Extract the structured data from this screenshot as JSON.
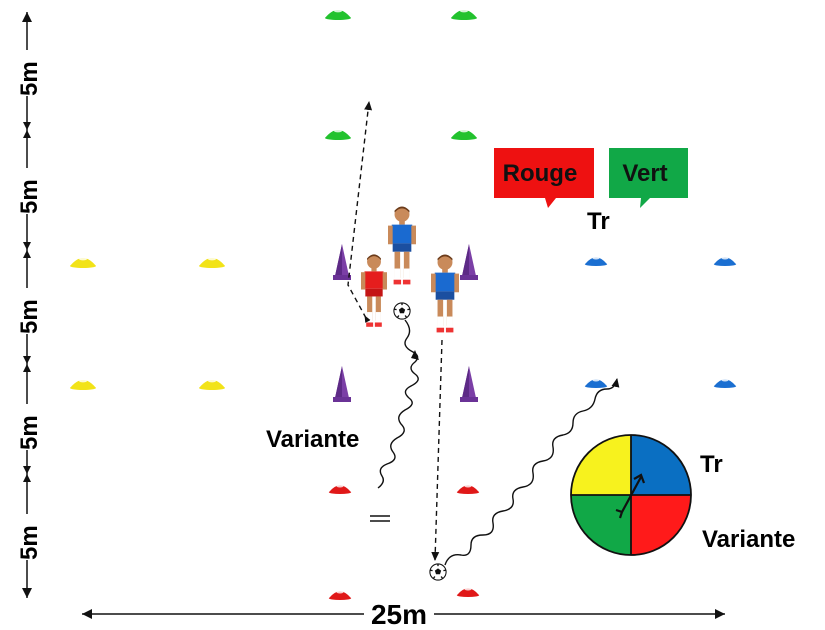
{
  "dimensions": {
    "vertical_segments": [
      "5m",
      "5m",
      "5m",
      "5m",
      "5m"
    ],
    "horizontal": "25m"
  },
  "teams": {
    "rouge": {
      "label": "Rouge",
      "color": "#ee1111"
    },
    "vert": {
      "label": "Vert",
      "color": "#11a847"
    }
  },
  "annotations": {
    "tr_top": "Tr",
    "variante_left": "Variante",
    "tr_legend": "Tr",
    "variante_legend": "Variante"
  },
  "colors": {
    "yellow_cone": "#f2e318",
    "green_cone": "#22c22e",
    "blue_cone": "#1b6fd1",
    "red_cone": "#e01818",
    "purple_pole": "#7b3fa6",
    "player_blue": "#1a6ad0",
    "player_red": "#e51d1d",
    "wheel": [
      "#0a6fc2",
      "#ff1a1a",
      "#11a847",
      "#f7f21e"
    ]
  },
  "icons": [
    "cone-icon",
    "pole-icon",
    "player-icon",
    "ball-icon",
    "goal-icon",
    "compass-wheel-icon"
  ]
}
